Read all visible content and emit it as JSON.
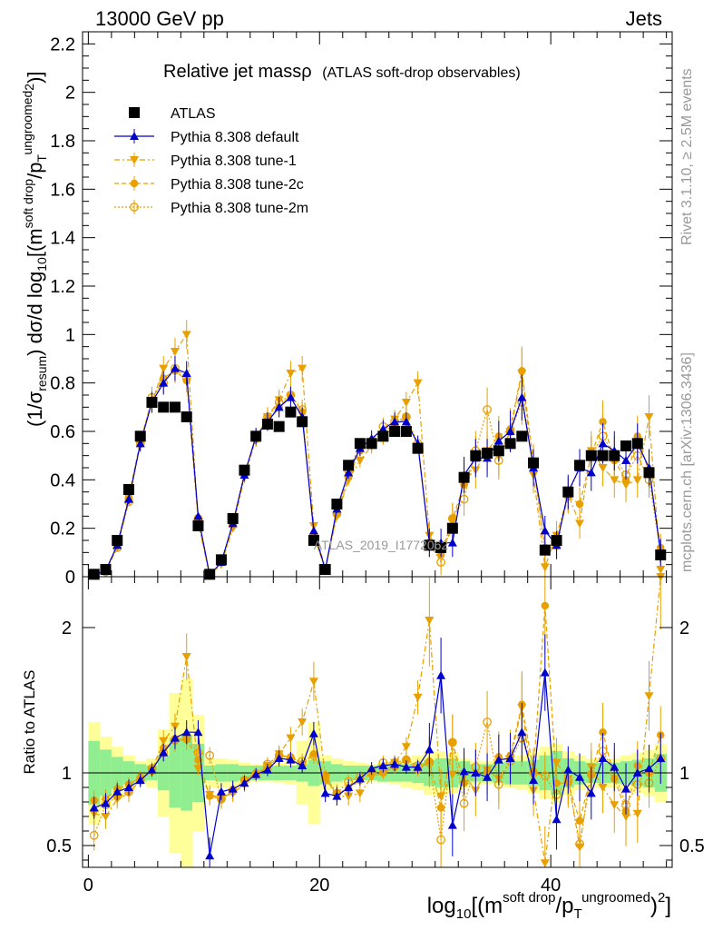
{
  "header": {
    "left": "13000 GeV pp",
    "right": "Jets"
  },
  "side_text": {
    "rivet": "Rivet 3.1.10, ≥ 2.5M events",
    "mcplots": "mcplots.cern.ch [arXiv:1306.3436]"
  },
  "chart_data": [
    {
      "type": "scatter",
      "title": "Relative jet massρ",
      "subtitle": "(ATLAS soft-drop observables)",
      "watermark": "ATLAS_2019_I1772062",
      "ylabel": "(1/σresum) dσ/d log10[(m soft drop / pT ungroomed)2]",
      "ylim": [
        0,
        2.25
      ],
      "xlim": [
        -0.5,
        50.5
      ],
      "y_ticks": [
        "0",
        "0.2",
        "0.4",
        "0.6",
        "0.8",
        "1",
        "1.2",
        "1.4",
        "1.6",
        "1.8",
        "2",
        "2.2"
      ],
      "legend_position": "top-left",
      "series": [
        {
          "name": "ATLAS",
          "color": "#000000",
          "marker": "square",
          "line": "none",
          "x": [
            0.5,
            1.5,
            2.5,
            3.5,
            4.5,
            5.5,
            6.5,
            7.5,
            8.5,
            9.5,
            10.5,
            11.5,
            12.5,
            13.5,
            14.5,
            15.5,
            16.5,
            17.5,
            18.5,
            19.5,
            20.5,
            21.5,
            22.5,
            23.5,
            24.5,
            25.5,
            26.5,
            27.5,
            28.5,
            29.5,
            30.5,
            31.5,
            32.5,
            33.5,
            34.5,
            35.5,
            36.5,
            37.5,
            38.5,
            39.5,
            40.5,
            41.5,
            42.5,
            43.5,
            44.5,
            45.5,
            46.5,
            47.5,
            48.5,
            49.5
          ],
          "y": [
            0.01,
            0.03,
            0.15,
            0.36,
            0.58,
            0.72,
            0.7,
            0.7,
            0.66,
            0.21,
            0.01,
            0.07,
            0.24,
            0.44,
            0.58,
            0.63,
            0.62,
            0.68,
            0.64,
            0.15,
            0.03,
            0.3,
            0.46,
            0.55,
            0.55,
            0.58,
            0.6,
            0.6,
            0.53,
            0.13,
            0.12,
            0.2,
            0.41,
            0.5,
            0.51,
            0.52,
            0.55,
            0.58,
            0.47,
            0.11,
            0.15,
            0.35,
            0.46,
            0.5,
            0.5,
            0.5,
            0.54,
            0.55,
            0.43,
            0.09
          ]
        },
        {
          "name": "Pythia 8.308 default",
          "color": "#0000cc",
          "marker": "triangle-up",
          "line": "solid",
          "x": [
            0.5,
            1.5,
            2.5,
            3.5,
            4.5,
            5.5,
            6.5,
            7.5,
            8.5,
            9.5,
            10.5,
            11.5,
            12.5,
            13.5,
            14.5,
            15.5,
            16.5,
            17.5,
            18.5,
            19.5,
            20.5,
            21.5,
            22.5,
            23.5,
            24.5,
            25.5,
            26.5,
            27.5,
            28.5,
            29.5,
            30.5,
            31.5,
            32.5,
            33.5,
            34.5,
            35.5,
            36.5,
            37.5,
            38.5,
            39.5,
            40.5,
            41.5,
            42.5,
            43.5,
            44.5,
            45.5,
            46.5,
            47.5,
            48.5,
            49.5
          ],
          "y": [
            0.008,
            0.025,
            0.13,
            0.32,
            0.55,
            0.72,
            0.8,
            0.86,
            0.84,
            0.25,
            0.006,
            0.06,
            0.22,
            0.42,
            0.58,
            0.64,
            0.7,
            0.74,
            0.66,
            0.19,
            0.03,
            0.28,
            0.43,
            0.53,
            0.57,
            0.61,
            0.64,
            0.64,
            0.55,
            0.14,
            0.14,
            0.14,
            0.42,
            0.49,
            0.49,
            0.56,
            0.6,
            0.74,
            0.45,
            0.19,
            0.13,
            0.35,
            0.45,
            0.43,
            0.55,
            0.52,
            0.48,
            0.55,
            0.45,
            0.1
          ],
          "y_ratio": [
            0.76,
            0.79,
            0.87,
            0.9,
            0.95,
            1.02,
            1.14,
            1.24,
            1.28,
            1.28,
            0.43,
            0.87,
            0.89,
            0.93,
            0.99,
            1.02,
            1.1,
            1.09,
            1.05,
            1.27,
            0.86,
            0.84,
            0.9,
            0.96,
            1.03,
            1.05,
            1.06,
            1.04,
            1.04,
            1.16,
            1.67,
            0.64,
            1.01,
            1.0,
            0.97,
            1.09,
            1.1,
            1.28,
            0.95,
            1.69,
            0.68,
            1.02,
            0.97,
            0.86,
            1.1,
            1.04,
            0.89,
            1.0,
            1.03,
            1.1
          ]
        },
        {
          "name": "Pythia 8.308 tune-1",
          "color": "#e8a000",
          "marker": "triangle-down",
          "line": "dashdot",
          "x": [
            0.5,
            1.5,
            2.5,
            3.5,
            4.5,
            5.5,
            6.5,
            7.5,
            8.5,
            9.5,
            10.5,
            11.5,
            12.5,
            13.5,
            14.5,
            15.5,
            16.5,
            17.5,
            18.5,
            19.5,
            20.5,
            21.5,
            22.5,
            23.5,
            24.5,
            25.5,
            26.5,
            27.5,
            28.5,
            29.5,
            30.5,
            31.5,
            32.5,
            33.5,
            34.5,
            35.5,
            36.5,
            37.5,
            38.5,
            39.5,
            40.5,
            41.5,
            42.5,
            43.5,
            44.5,
            45.5,
            46.5,
            47.5,
            48.5,
            49.5
          ],
          "y": [
            0.007,
            0.02,
            0.12,
            0.31,
            0.55,
            0.72,
            0.86,
            0.93,
            1.0,
            0.22,
            0.005,
            0.05,
            0.2,
            0.41,
            0.57,
            0.66,
            0.73,
            0.84,
            0.86,
            0.21,
            0.03,
            0.25,
            0.4,
            0.48,
            0.54,
            0.58,
            0.65,
            0.72,
            0.8,
            0.17,
            0.1,
            0.2,
            0.4,
            0.44,
            0.52,
            0.5,
            0.6,
            0.84,
            0.42,
            0.04,
            0.17,
            0.34,
            0.22,
            0.52,
            0.45,
            0.4,
            0.38,
            0.4,
            0.66,
            0.03
          ],
          "y_ratio": [
            0.72,
            0.7,
            0.82,
            0.86,
            0.95,
            1.02,
            1.22,
            1.32,
            1.8,
            1.03,
            0.85,
            0.83,
            0.86,
            0.92,
            0.98,
            1.05,
            1.13,
            1.24,
            1.35,
            1.63,
            0.97,
            0.84,
            0.84,
            0.86,
            0.97,
            1.0,
            1.07,
            1.18,
            1.52,
            2.05,
            0.84,
            0.99,
            0.98,
            0.88,
            1.02,
            0.96,
            1.09,
            1.45,
            0.88,
            0.38,
            1.07,
            0.96,
            0.49,
            1.04,
            0.9,
            0.78,
            0.7,
            0.72,
            1.53,
            2.35
          ]
        },
        {
          "name": "Pythia 8.308 tune-2c",
          "color": "#e8a000",
          "marker": "circle",
          "line": "dashed",
          "x": [
            0.5,
            1.5,
            2.5,
            3.5,
            4.5,
            5.5,
            6.5,
            7.5,
            8.5,
            9.5,
            10.5,
            11.5,
            12.5,
            13.5,
            14.5,
            15.5,
            16.5,
            17.5,
            18.5,
            19.5,
            20.5,
            21.5,
            22.5,
            23.5,
            24.5,
            25.5,
            26.5,
            27.5,
            28.5,
            29.5,
            30.5,
            31.5,
            32.5,
            33.5,
            34.5,
            35.5,
            36.5,
            37.5,
            38.5,
            39.5,
            40.5,
            41.5,
            42.5,
            43.5,
            44.5,
            45.5,
            46.5,
            47.5,
            48.5,
            49.5
          ],
          "y": [
            0.008,
            0.025,
            0.13,
            0.33,
            0.56,
            0.73,
            0.82,
            0.85,
            0.81,
            0.23,
            0.005,
            0.06,
            0.21,
            0.42,
            0.58,
            0.65,
            0.7,
            0.75,
            0.68,
            0.17,
            0.03,
            0.26,
            0.41,
            0.52,
            0.55,
            0.58,
            0.62,
            0.66,
            0.54,
            0.14,
            0.09,
            0.24,
            0.38,
            0.5,
            0.52,
            0.58,
            0.61,
            0.85,
            0.47,
            0.12,
            0.14,
            0.33,
            0.3,
            0.5,
            0.64,
            0.48,
            0.4,
            0.58,
            0.43,
            0.12
          ],
          "y_ratio": [
            0.81,
            0.82,
            0.89,
            0.92,
            0.97,
            1.01,
            1.17,
            1.22,
            1.23,
            1.09,
            0.84,
            0.82,
            0.87,
            0.95,
            1.0,
            1.03,
            1.12,
            1.11,
            1.06,
            1.13,
            0.95,
            0.86,
            0.89,
            0.95,
            1.0,
            1.0,
            1.04,
            1.09,
            1.02,
            1.08,
            0.76,
            1.21,
            0.93,
            1.0,
            1.01,
            1.11,
            1.12,
            1.47,
            1.01,
            2.15,
            0.93,
            0.93,
            0.67,
            0.99,
            1.28,
            0.96,
            0.74,
            1.05,
            1.0,
            1.26
          ]
        },
        {
          "name": "Pythia 8.308 tune-2m",
          "color": "#e8a000",
          "marker": "open-circle",
          "line": "dotted",
          "x": [
            0.5,
            1.5,
            2.5,
            3.5,
            4.5,
            5.5,
            6.5,
            7.5,
            8.5,
            9.5,
            10.5,
            11.5,
            12.5,
            13.5,
            14.5,
            15.5,
            16.5,
            17.5,
            18.5,
            19.5,
            20.5,
            21.5,
            22.5,
            23.5,
            24.5,
            25.5,
            26.5,
            27.5,
            28.5,
            29.5,
            30.5,
            31.5,
            32.5,
            33.5,
            34.5,
            35.5,
            36.5,
            37.5,
            38.5,
            39.5,
            40.5,
            41.5,
            42.5,
            43.5,
            44.5,
            45.5,
            46.5,
            47.5,
            48.5,
            49.5
          ],
          "y": [
            0.006,
            0.02,
            0.12,
            0.31,
            0.55,
            0.74,
            0.8,
            0.86,
            0.82,
            0.24,
            0.006,
            0.06,
            0.22,
            0.43,
            0.57,
            0.66,
            0.72,
            0.75,
            0.69,
            0.17,
            0.03,
            0.26,
            0.44,
            0.54,
            0.56,
            0.62,
            0.64,
            0.66,
            0.55,
            0.14,
            0.06,
            0.24,
            0.32,
            0.52,
            0.69,
            0.48,
            0.6,
            0.72,
            0.46,
            0.11,
            0.13,
            0.34,
            0.45,
            0.5,
            0.58,
            0.5,
            0.42,
            0.5,
            0.4,
            0.1
          ],
          "y_ratio": [
            0.57,
            0.78,
            0.84,
            0.87,
            0.95,
            1.03,
            1.14,
            1.23,
            1.24,
            1.14,
            1.12,
            0.82,
            0.88,
            0.95,
            0.99,
            1.06,
            1.12,
            1.1,
            1.08,
            1.12,
            0.98,
            0.86,
            0.94,
            0.97,
            1.01,
            1.07,
            1.07,
            1.09,
            1.05,
            1.07,
            0.54,
            1.21,
            0.79,
            1.04,
            1.35,
            0.92,
            1.08,
            1.24,
            1.0,
            0.98,
            0.85,
            0.95,
            0.51,
            0.99,
            1.15,
            1.0,
            0.78,
            0.92,
            0.93,
            1.1
          ]
        }
      ]
    },
    {
      "type": "scatter",
      "ylabel": "Ratio to ATLAS",
      "xlabel": "log10[(m soft drop / pT ungroomed)2]",
      "ylim": [
        0.35,
        2.35
      ],
      "xlim": [
        -0.5,
        50.5
      ],
      "reference_line": 1,
      "y_ticks": [
        "0.5",
        "1",
        "2"
      ],
      "x_ticks": [
        "0",
        "20",
        "40"
      ],
      "bands": {
        "stat_color": "#90ee90",
        "total_color": "#ffff99",
        "stat_halfwidth": [
          0.22,
          0.16,
          0.11,
          0.08,
          0.06,
          0.05,
          0.12,
          0.24,
          0.26,
          0.2,
          0.05,
          0.06,
          0.06,
          0.05,
          0.05,
          0.05,
          0.05,
          0.05,
          0.06,
          0.09,
          0.08,
          0.06,
          0.05,
          0.05,
          0.05,
          0.06,
          0.06,
          0.06,
          0.07,
          0.09,
          0.1,
          0.1,
          0.08,
          0.06,
          0.06,
          0.07,
          0.08,
          0.08,
          0.09,
          0.12,
          0.15,
          0.1,
          0.08,
          0.07,
          0.07,
          0.07,
          0.08,
          0.09,
          0.1,
          0.13
        ],
        "total_halfwidth": [
          0.35,
          0.25,
          0.18,
          0.12,
          0.08,
          0.1,
          0.3,
          0.55,
          0.65,
          0.4,
          0.1,
          0.1,
          0.09,
          0.07,
          0.06,
          0.06,
          0.07,
          0.08,
          0.22,
          0.35,
          0.12,
          0.1,
          0.08,
          0.07,
          0.06,
          0.07,
          0.08,
          0.1,
          0.12,
          0.15,
          0.15,
          0.14,
          0.1,
          0.08,
          0.08,
          0.09,
          0.1,
          0.12,
          0.14,
          0.18,
          0.2,
          0.15,
          0.12,
          0.1,
          0.1,
          0.1,
          0.12,
          0.14,
          0.16,
          0.2
        ]
      }
    }
  ]
}
